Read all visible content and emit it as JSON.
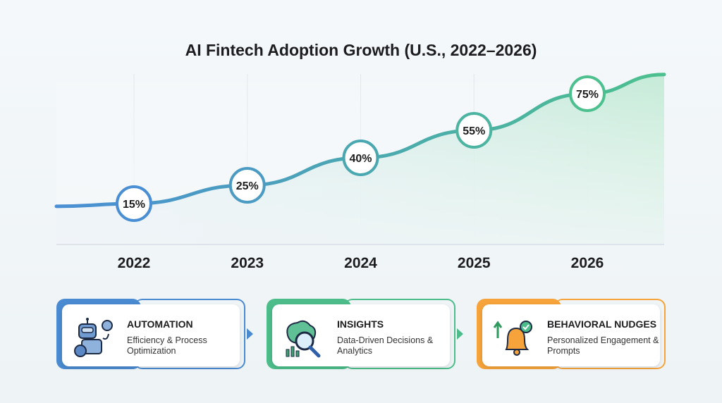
{
  "chart_data": {
    "type": "area",
    "title": "AI Fintech Adoption Growth (U.S., 2022–2026)",
    "categories": [
      "2022",
      "2023",
      "2024",
      "2025",
      "2026"
    ],
    "values": [
      15,
      25,
      40,
      55,
      75
    ],
    "data_labels": [
      "15%",
      "25%",
      "40%",
      "55%",
      "75%"
    ],
    "xlabel": "",
    "ylabel": "",
    "grid": "vertical",
    "colors": {
      "start": "#4a8fd4",
      "end": "#4cc08e"
    }
  },
  "cards": [
    {
      "title": "AUTOMATION",
      "subtitle": "Efficiency & Process Optimization",
      "color": "#4a8ad0",
      "icon": "robot-gear-icon"
    },
    {
      "title": "INSIGHTS",
      "subtitle": "Data-Driven Decisions & Analytics",
      "color": "#4cbd8a",
      "icon": "brain-magnifier-chart-icon"
    },
    {
      "title": "BEHAVIORAL NUDGES",
      "subtitle": "Personalized Engagement & Prompts",
      "color": "#f5a33a",
      "icon": "bell-check-icon"
    }
  ]
}
